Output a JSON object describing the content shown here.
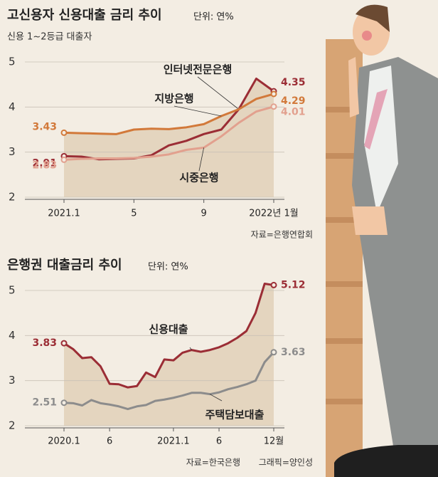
{
  "chart_data": [
    {
      "type": "line",
      "title": "고신용자 신용대출 금리 추이",
      "unit": "단위: 연%",
      "subtitle": "신용 1~2등급 대출자",
      "categories": [
        "2021.1",
        null,
        null,
        null,
        "5",
        null,
        null,
        null,
        "9",
        null,
        null,
        null,
        "2022년 1월"
      ],
      "series": [
        {
          "name": "인터넷전문은행",
          "color": "#9b2d35",
          "values": [
            2.91,
            2.9,
            2.84,
            2.85,
            2.86,
            2.93,
            3.15,
            3.25,
            3.4,
            3.5,
            3.95,
            4.63,
            4.35
          ]
        },
        {
          "name": "지방은행",
          "color": "#d2793a",
          "values": [
            3.43,
            3.42,
            3.41,
            3.4,
            3.5,
            3.52,
            3.51,
            3.55,
            3.62,
            3.8,
            3.95,
            4.18,
            4.29
          ]
        },
        {
          "name": "시중은행",
          "color": "#e2a08e",
          "values": [
            2.83,
            2.85,
            2.86,
            2.86,
            2.87,
            2.9,
            2.95,
            3.05,
            3.1,
            3.35,
            3.65,
            3.9,
            4.01
          ]
        }
      ],
      "ylim": [
        2,
        5
      ],
      "yticks": [
        2,
        3,
        4,
        5
      ],
      "grid": true,
      "source": "자료=은행연합회"
    },
    {
      "type": "line",
      "title": "은행권 대출금리 추이",
      "unit": "단위: 연%",
      "categories": [
        "2020.1",
        null,
        null,
        null,
        null,
        "6",
        null,
        null,
        null,
        null,
        null,
        null,
        "2021.1",
        null,
        null,
        null,
        null,
        "6",
        null,
        null,
        null,
        null,
        null,
        "12월"
      ],
      "series": [
        {
          "name": "신용대출",
          "color": "#9b2d35",
          "values": [
            3.83,
            3.7,
            3.5,
            3.52,
            3.32,
            2.93,
            2.92,
            2.85,
            2.88,
            3.18,
            3.08,
            3.47,
            3.45,
            3.62,
            3.68,
            3.64,
            3.68,
            3.74,
            3.83,
            3.95,
            4.1,
            4.5,
            5.15,
            5.12
          ]
        },
        {
          "name": "주택담보대출",
          "color": "#8c8c8c",
          "values": [
            2.51,
            2.5,
            2.45,
            2.57,
            2.5,
            2.47,
            2.43,
            2.37,
            2.43,
            2.46,
            2.55,
            2.58,
            2.62,
            2.67,
            2.73,
            2.73,
            2.7,
            2.74,
            2.81,
            2.86,
            2.92,
            3.0,
            3.41,
            3.63
          ]
        }
      ],
      "ylim": [
        2,
        5
      ],
      "yticks": [
        2,
        3,
        4,
        5
      ],
      "grid": true,
      "source": "자료=한국은행",
      "credit": "그래픽=양인성"
    }
  ]
}
